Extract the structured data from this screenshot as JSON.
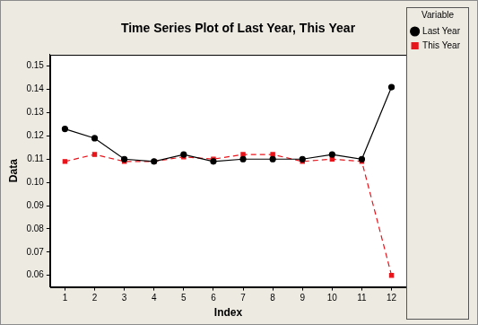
{
  "chart_data": {
    "type": "line",
    "title": "Time Series Plot of Last Year, This Year",
    "x_label": "Index",
    "y_label": "Data",
    "legend_title": "Variable",
    "legend": "right",
    "grid": false,
    "x": [
      1,
      2,
      3,
      4,
      5,
      6,
      7,
      8,
      9,
      10,
      11,
      12
    ],
    "xlim": [
      0.5,
      12.5
    ],
    "xticks": [
      1,
      2,
      3,
      4,
      5,
      6,
      7,
      8,
      9,
      10,
      11,
      12
    ],
    "ylim": [
      0.055,
      0.155
    ],
    "yticks": [
      0.06,
      0.07,
      0.08,
      0.09,
      {
        "value": 0.1,
        "label": "0.10"
      },
      0.11,
      0.12,
      0.13,
      0.14,
      0.15
    ],
    "series": [
      {
        "name": "Last Year",
        "color": "#000000",
        "marker": "circle",
        "line_style": "solid",
        "values": [
          0.123,
          0.119,
          0.11,
          0.109,
          0.112,
          0.109,
          0.11,
          0.11,
          0.11,
          0.112,
          0.11,
          0.141
        ]
      },
      {
        "name": "This Year",
        "color": "#e8141b",
        "marker": "square",
        "line_style": "dashed",
        "values": [
          0.109,
          0.112,
          0.109,
          0.109,
          0.111,
          0.11,
          0.112,
          0.112,
          0.109,
          0.11,
          0.109,
          0.06
        ]
      }
    ]
  }
}
